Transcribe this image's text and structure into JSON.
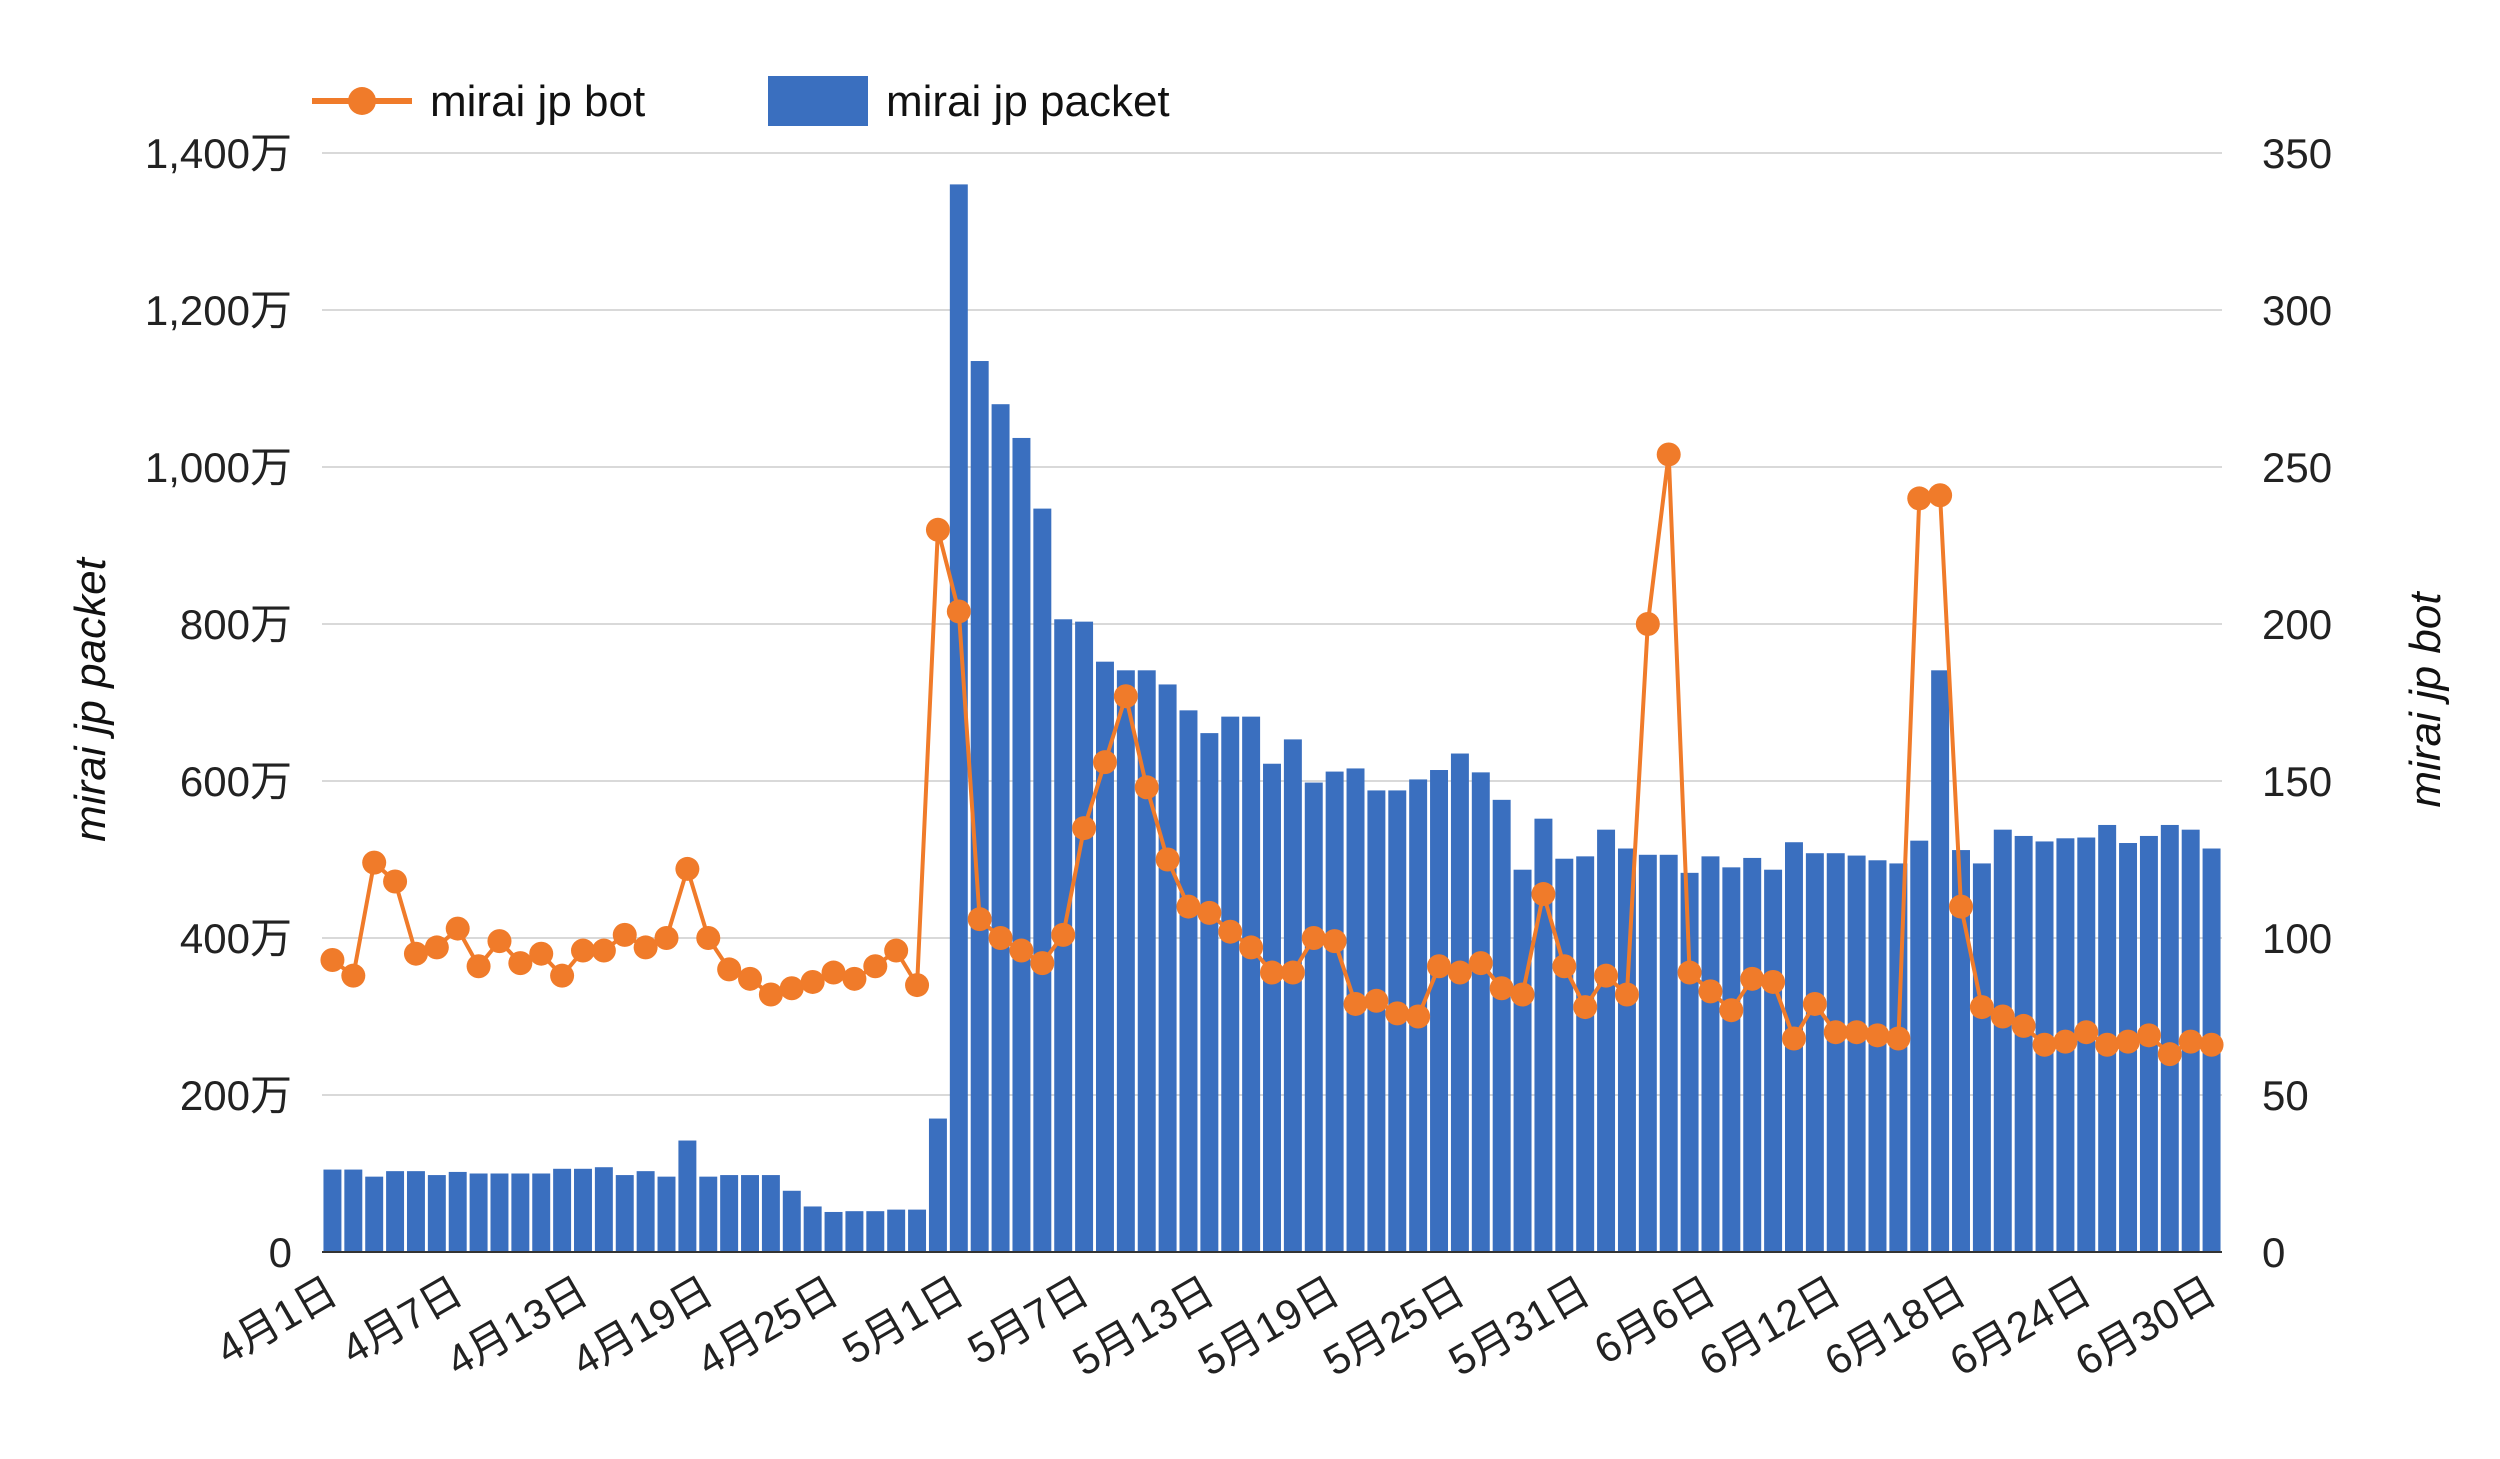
{
  "chart_data": {
    "type": "bar+line",
    "legend": {
      "position": "top-left",
      "entries": [
        {
          "name": "mirai jp bot",
          "marker": "line-dot"
        },
        {
          "name": "mirai jp packet",
          "marker": "bar"
        }
      ]
    },
    "y_left": {
      "label": "mirai jp packet",
      "range": [
        0,
        14000000
      ],
      "ticks": [
        "0",
        "200万",
        "400万",
        "600万",
        "800万",
        "1,000万",
        "1,200万",
        "1,400万"
      ],
      "tick_values": [
        0,
        2000000,
        4000000,
        6000000,
        8000000,
        10000000,
        12000000,
        14000000
      ]
    },
    "y_right": {
      "label": "mirai jp bot",
      "range": [
        0,
        350
      ],
      "ticks": [
        "0",
        "50",
        "100",
        "150",
        "200",
        "250",
        "300",
        "350"
      ],
      "tick_values": [
        0,
        50,
        100,
        150,
        200,
        250,
        300,
        350
      ]
    },
    "x_tick_labels": [
      "4月1日",
      "4月7日",
      "4月13日",
      "4月19日",
      "4月25日",
      "5月1日",
      "5月7日",
      "5月13日",
      "5月19日",
      "5月25日",
      "5月31日",
      "6月6日",
      "6月12日",
      "6月18日",
      "6月24日",
      "6月30日"
    ],
    "x_tick_every": 6,
    "grid": true,
    "colors": {
      "bar": "#3a6fbf",
      "line": "#f07b2a"
    },
    "series": [
      {
        "name": "mirai jp packet",
        "type": "bar",
        "axis": "left",
        "values": [
          1050000,
          1050000,
          960000,
          1030000,
          1030000,
          980000,
          1020000,
          1000000,
          1000000,
          1000000,
          1000000,
          1060000,
          1060000,
          1080000,
          980000,
          1030000,
          960000,
          1420000,
          960000,
          980000,
          980000,
          980000,
          780000,
          580000,
          510000,
          520000,
          520000,
          540000,
          540000,
          1700000,
          13600000,
          11350000,
          10800000,
          10370000,
          9470000,
          8060000,
          8030000,
          7520000,
          7410000,
          7410000,
          7230000,
          6900000,
          6610000,
          6820000,
          6820000,
          6220000,
          6530000,
          5980000,
          6120000,
          6160000,
          5880000,
          5880000,
          6020000,
          6140000,
          6350000,
          6110000,
          5760000,
          4870000,
          5520000,
          5010000,
          5040000,
          5380000,
          5140000,
          5060000,
          5060000,
          4830000,
          5040000,
          4900000,
          5020000,
          4870000,
          5220000,
          5080000,
          5080000,
          5050000,
          4990000,
          4950000,
          5240000,
          7410000,
          5120000,
          4950000,
          5380000,
          5300000,
          5230000,
          5270000,
          5280000,
          5440000,
          5210000,
          5300000,
          5440000,
          5380000,
          5140000
        ]
      },
      {
        "name": "mirai jp bot",
        "type": "line",
        "axis": "right",
        "values": [
          93,
          88,
          124,
          118,
          95,
          97,
          103,
          91,
          99,
          92,
          95,
          88,
          96,
          96,
          101,
          97,
          100,
          122,
          100,
          90,
          87,
          82,
          84,
          86,
          89,
          87,
          91,
          96,
          85,
          230,
          204,
          106,
          100,
          96,
          92,
          101,
          135,
          156,
          177,
          148,
          125,
          110,
          108,
          102,
          97,
          89,
          89,
          100,
          99,
          79,
          80,
          76,
          75,
          91,
          89,
          92,
          84,
          82,
          114,
          91,
          78,
          88,
          82,
          200,
          254,
          89,
          83,
          77,
          87,
          86,
          68,
          79,
          70,
          70,
          69,
          68,
          240,
          241,
          110,
          78,
          75,
          72,
          66,
          67,
          70,
          66,
          67,
          69,
          63,
          67,
          66
        ]
      }
    ]
  }
}
